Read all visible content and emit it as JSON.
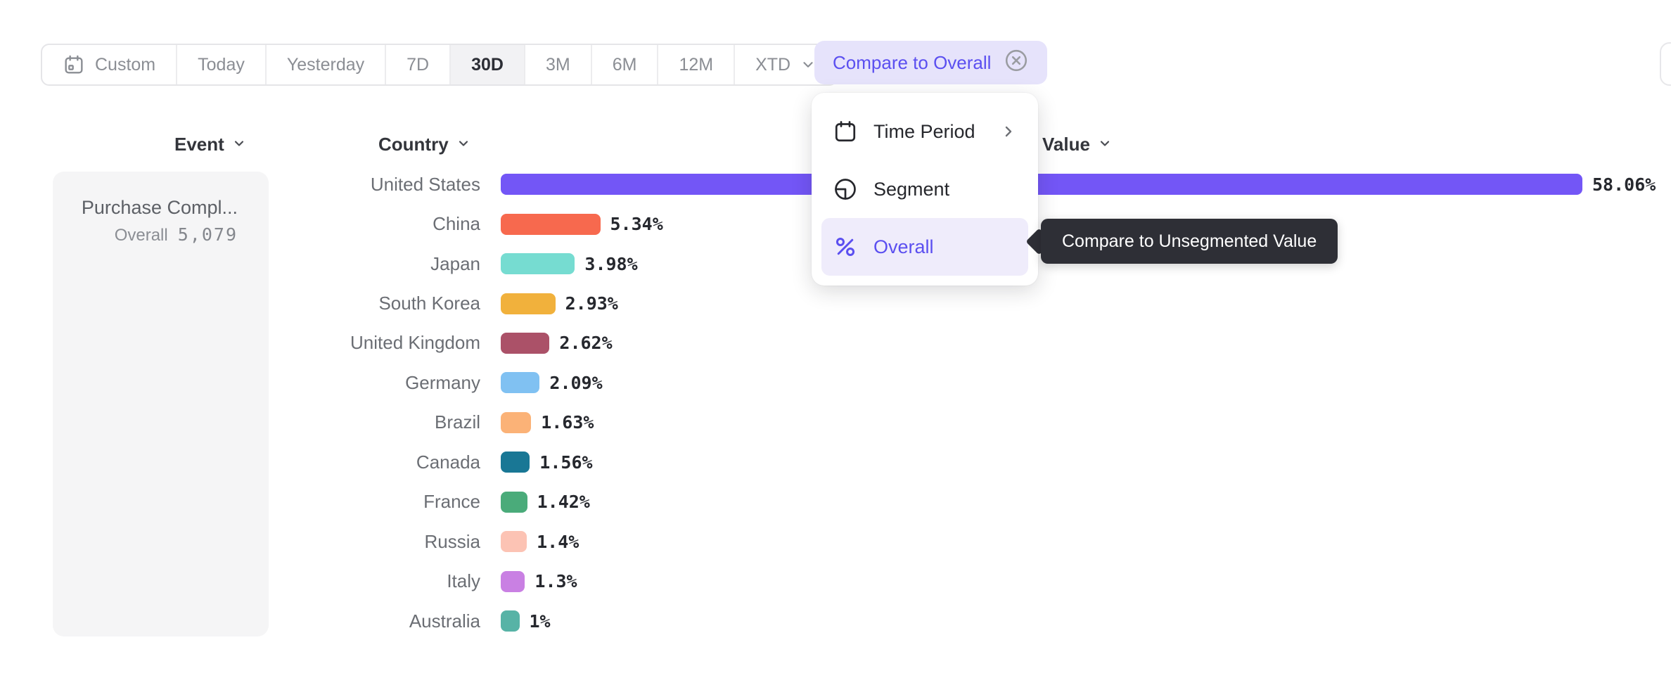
{
  "toolbar": {
    "ranges": [
      {
        "label": "Custom"
      },
      {
        "label": "Today"
      },
      {
        "label": "Yesterday"
      },
      {
        "label": "7D"
      },
      {
        "label": "30D"
      },
      {
        "label": "3M"
      },
      {
        "label": "6M"
      },
      {
        "label": "12M"
      },
      {
        "label": "XTD"
      }
    ],
    "selected_range": "30D",
    "compare_label": "Compare to Overall"
  },
  "menu": {
    "items": [
      {
        "label": "Time Period",
        "icon": "calendar-icon",
        "has_submenu": true
      },
      {
        "label": "Segment",
        "icon": "segment-icon",
        "has_submenu": false
      },
      {
        "label": "Overall",
        "icon": "percent-icon",
        "has_submenu": false,
        "selected": true
      }
    ]
  },
  "tooltip": {
    "text": "Compare to Unsegmented Value"
  },
  "event_panel": {
    "header": "Event",
    "event_name": "Purchase Compl...",
    "overall_label": "Overall",
    "overall_value": "5,079"
  },
  "headers": {
    "country": "Country",
    "value": "Value"
  },
  "chart_data": {
    "type": "bar",
    "orientation": "horizontal",
    "title": "",
    "xlabel": "Value",
    "ylabel": "Country",
    "xlim": [
      0,
      60
    ],
    "grid": false,
    "legend": "none",
    "categories": [
      "United States",
      "China",
      "Japan",
      "South Korea",
      "United Kingdom",
      "Germany",
      "Brazil",
      "Canada",
      "France",
      "Russia",
      "Italy",
      "Australia"
    ],
    "values": [
      58.06,
      5.34,
      3.98,
      2.93,
      2.62,
      2.09,
      1.63,
      1.56,
      1.42,
      1.4,
      1.3,
      1
    ],
    "value_labels": [
      "58.06%",
      "5.34%",
      "3.98%",
      "2.93%",
      "2.62%",
      "2.09%",
      "1.63%",
      "1.56%",
      "1.42%",
      "1.4%",
      "1.3%",
      "1%"
    ],
    "colors": [
      "#7356f6",
      "#f7694e",
      "#76dcd1",
      "#f1b13c",
      "#ab5168",
      "#80c1f2",
      "#fbb277",
      "#197795",
      "#4aab7a",
      "#fcc3b4",
      "#c980e3",
      "#57b3a6"
    ]
  },
  "colors": {
    "accent": "#5b4ff0",
    "accent_bg": "#e6e3fb",
    "selected_range_bg": "#f2f2f4",
    "tooltip_bg": "#2e2f36",
    "bar_us": "#7356f6"
  }
}
